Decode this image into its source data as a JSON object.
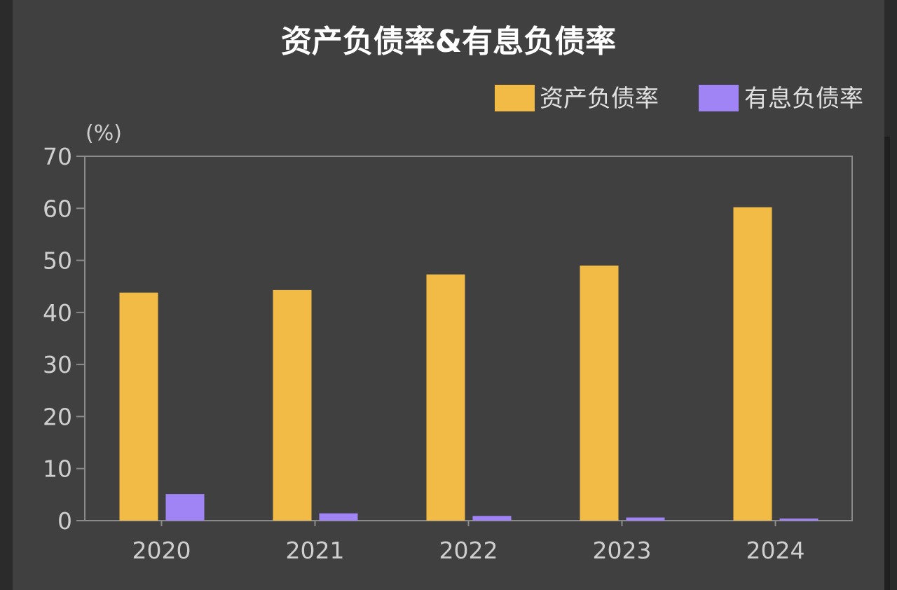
{
  "chart_data": {
    "type": "bar",
    "title": "资产负债率&有息负债率",
    "ylabel": "(%)",
    "xlabel": "",
    "categories": [
      "2020",
      "2021",
      "2022",
      "2023",
      "2024"
    ],
    "series": [
      {
        "name": "资产负债率",
        "values": [
          43.8,
          44.3,
          47.3,
          49.0,
          60.2
        ],
        "color": "#f2bb45"
      },
      {
        "name": "有息负债率",
        "values": [
          5.1,
          1.4,
          0.9,
          0.6,
          0.4
        ],
        "color": "#a084f5"
      }
    ],
    "ylim": [
      0,
      70
    ],
    "yticks": [
      0,
      10,
      20,
      30,
      40,
      50,
      60,
      70
    ],
    "grid": false,
    "legend_position": "top-right"
  },
  "colors": {
    "background": "#404040",
    "axis": "#8a8a8a"
  }
}
